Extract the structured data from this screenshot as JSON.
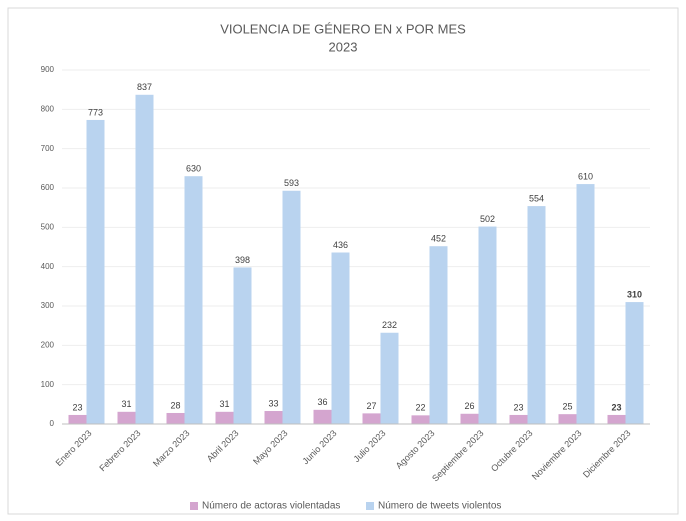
{
  "chart_data": {
    "type": "bar",
    "title": "VIOLENCIA DE GÉNERO EN x POR MES",
    "subtitle": "2023",
    "categories": [
      "Enero 2023",
      "Febrero 2023",
      "Marzo 2023",
      "Abril 2023",
      "Mayo 2023",
      "Junio 2023",
      "Julio 2023",
      "Agosto 2023",
      "Septiembre 2023",
      "Octubre 2023",
      "Noviembre 2023",
      "Diciembre 2023"
    ],
    "series": [
      {
        "name": "Número de actoras violentadas",
        "color": "#d4a5cf",
        "values": [
          23,
          31,
          28,
          31,
          33,
          36,
          27,
          22,
          26,
          23,
          25,
          23
        ]
      },
      {
        "name": "Número de tweets violentos",
        "color": "#b9d3ef",
        "values": [
          773,
          837,
          630,
          398,
          593,
          436,
          232,
          452,
          502,
          554,
          610,
          310
        ]
      }
    ],
    "ylim": [
      0,
      900
    ],
    "yticks": [
      0,
      100,
      200,
      300,
      400,
      500,
      600,
      700,
      800,
      900
    ],
    "grid": true,
    "legend": "bottom"
  }
}
